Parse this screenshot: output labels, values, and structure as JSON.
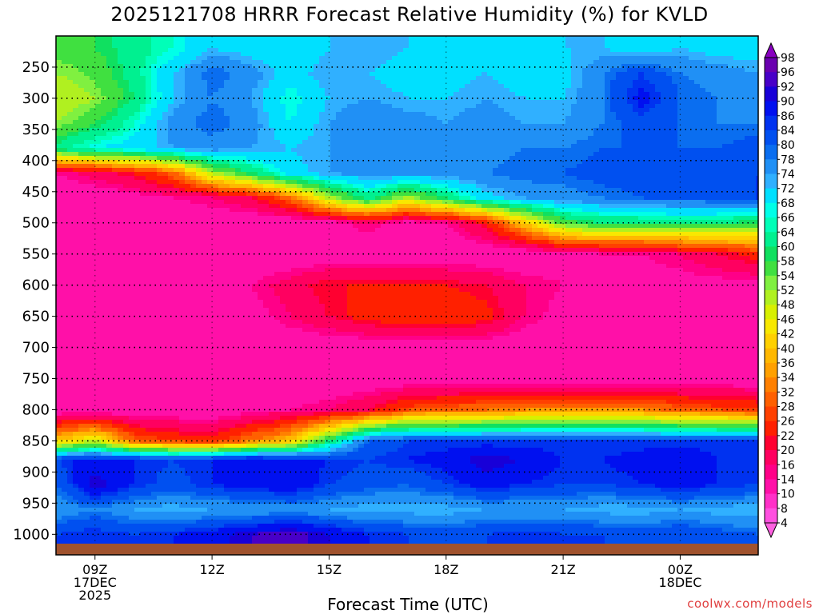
{
  "chart_data": {
    "type": "heatmap",
    "title": "2025121708 HRRR Forecast Relative Humidity (%) for KVLD",
    "xlabel": "Forecast Time (UTC)",
    "ylabel": "",
    "x_ticks": [
      {
        "hour": 9,
        "lines": [
          "09Z",
          "17DEC",
          "2025"
        ]
      },
      {
        "hour": 12,
        "lines": [
          "12Z"
        ]
      },
      {
        "hour": 15,
        "lines": [
          "15Z"
        ]
      },
      {
        "hour": 18,
        "lines": [
          "18Z"
        ]
      },
      {
        "hour": 21,
        "lines": [
          "21Z"
        ]
      },
      {
        "hour": 24,
        "lines": [
          "00Z",
          "18DEC"
        ]
      }
    ],
    "xlim_hours": [
      8,
      26
    ],
    "y_ticks": [
      "250",
      "300",
      "350",
      "400",
      "450",
      "500",
      "550",
      "600",
      "650",
      "700",
      "750",
      "800",
      "850",
      "900",
      "950",
      "1000"
    ],
    "ylim_hPa": [
      200,
      1015
    ],
    "colorbar_levels": [
      "98",
      "96",
      "92",
      "90",
      "86",
      "84",
      "80",
      "78",
      "74",
      "72",
      "68",
      "66",
      "64",
      "60",
      "58",
      "54",
      "52",
      "48",
      "46",
      "42",
      "40",
      "36",
      "34",
      "32",
      "28",
      "26",
      "22",
      "20",
      "16",
      "14",
      "10",
      "8",
      "4"
    ],
    "colorbar_colors": [
      "#6a00b0",
      "#4800c8",
      "#1800d8",
      "#0010f0",
      "#0032f0",
      "#0050f0",
      "#0a6ef0",
      "#2090f5",
      "#30b0ff",
      "#00e0ff",
      "#00ffe8",
      "#00ffb8",
      "#00f090",
      "#10e060",
      "#40e040",
      "#80f040",
      "#b0f020",
      "#d8f000",
      "#f8e800",
      "#ffd000",
      "#ffb800",
      "#ffa000",
      "#ff8000",
      "#ff6000",
      "#ff4000",
      "#ff2000",
      "#ff0030",
      "#ff0060",
      "#ff0088",
      "#ff10a8",
      "#ff30c8",
      "#ff50e0"
    ],
    "cross_section_rh_percent": {
      "pressure_hPa": [
        220,
        260,
        300,
        340,
        380,
        420,
        460,
        500,
        550,
        600,
        650,
        700,
        750,
        800,
        850,
        880,
        920,
        960,
        1000
      ],
      "hours": [
        8,
        9,
        10,
        11,
        12,
        13,
        14,
        15,
        16,
        17,
        18,
        19,
        20,
        21,
        22,
        23,
        24,
        25,
        26
      ],
      "values": [
        [
          55,
          58,
          62,
          66,
          72,
          70,
          68,
          72,
          74,
          72,
          70,
          72,
          70,
          72,
          72,
          70,
          72,
          70,
          70
        ],
        [
          52,
          55,
          62,
          72,
          80,
          76,
          70,
          74,
          72,
          70,
          70,
          72,
          70,
          70,
          78,
          84,
          78,
          76,
          74
        ],
        [
          48,
          52,
          60,
          72,
          78,
          74,
          66,
          72,
          74,
          72,
          72,
          74,
          72,
          72,
          78,
          88,
          80,
          78,
          76
        ],
        [
          52,
          58,
          66,
          76,
          80,
          76,
          68,
          74,
          78,
          76,
          74,
          76,
          74,
          74,
          78,
          82,
          80,
          78,
          78
        ],
        [
          62,
          68,
          70,
          74,
          76,
          74,
          72,
          74,
          76,
          76,
          74,
          76,
          78,
          78,
          80,
          80,
          80,
          80,
          82
        ],
        [
          14,
          18,
          22,
          30,
          50,
          60,
          70,
          74,
          76,
          76,
          76,
          78,
          80,
          80,
          82,
          82,
          82,
          84,
          84
        ],
        [
          10,
          10,
          12,
          14,
          16,
          20,
          30,
          50,
          62,
          50,
          60,
          70,
          74,
          76,
          78,
          80,
          80,
          82,
          84
        ],
        [
          10,
          10,
          10,
          10,
          10,
          10,
          10,
          12,
          16,
          12,
          14,
          22,
          40,
          56,
          60,
          60,
          62,
          60,
          58
        ],
        [
          10,
          10,
          10,
          10,
          10,
          10,
          10,
          10,
          10,
          10,
          10,
          10,
          10,
          12,
          14,
          14,
          16,
          20,
          24
        ],
        [
          12,
          12,
          12,
          12,
          12,
          14,
          18,
          22,
          22,
          22,
          22,
          20,
          16,
          14,
          12,
          12,
          12,
          12,
          12
        ],
        [
          10,
          10,
          10,
          10,
          10,
          12,
          16,
          20,
          24,
          26,
          26,
          24,
          16,
          12,
          10,
          10,
          10,
          10,
          10
        ],
        [
          10,
          10,
          10,
          10,
          10,
          10,
          10,
          10,
          10,
          10,
          10,
          10,
          10,
          10,
          10,
          10,
          10,
          10,
          10
        ],
        [
          10,
          10,
          10,
          10,
          10,
          10,
          10,
          10,
          10,
          10,
          10,
          10,
          10,
          10,
          10,
          10,
          10,
          10,
          10
        ],
        [
          10,
          10,
          10,
          10,
          10,
          12,
          14,
          16,
          20,
          28,
          30,
          32,
          34,
          34,
          34,
          34,
          30,
          28,
          26
        ],
        [
          40,
          48,
          30,
          26,
          24,
          32,
          40,
          60,
          80,
          84,
          84,
          84,
          84,
          84,
          84,
          84,
          84,
          84,
          84
        ],
        [
          84,
          88,
          86,
          84,
          86,
          90,
          88,
          86,
          84,
          86,
          88,
          92,
          90,
          86,
          86,
          88,
          90,
          86,
          86
        ],
        [
          80,
          92,
          86,
          82,
          86,
          88,
          90,
          84,
          82,
          80,
          84,
          88,
          86,
          84,
          84,
          86,
          88,
          86,
          84
        ],
        [
          74,
          78,
          74,
          72,
          74,
          74,
          76,
          74,
          72,
          72,
          72,
          74,
          74,
          74,
          72,
          72,
          74,
          72,
          72
        ],
        [
          84,
          86,
          84,
          86,
          88,
          92,
          94,
          90,
          86,
          84,
          82,
          84,
          86,
          84,
          84,
          82,
          84,
          82,
          80
        ]
      ]
    }
  },
  "credit": "coolwx.com/models"
}
